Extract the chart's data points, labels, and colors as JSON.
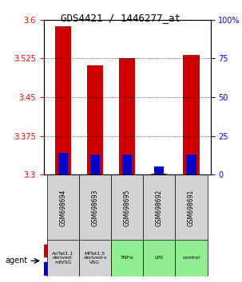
{
  "title": "GDS4421 / 1446277_at",
  "samples": [
    "GSM698694",
    "GSM698693",
    "GSM698695",
    "GSM698692",
    "GSM698691"
  ],
  "agents": [
    "AnTat1.1\nderived-\nmfVSG",
    "MiTat1.5\nderived-s\nVSG",
    "TNFα",
    "LPS",
    "control"
  ],
  "agent_colors": [
    "#d3d3d3",
    "#d3d3d3",
    "#90ee90",
    "#90ee90",
    "#90ee90"
  ],
  "red_values": [
    3.588,
    3.512,
    3.525,
    3.302,
    3.532
  ],
  "blue_values_pct": [
    14,
    13,
    13,
    5,
    13
  ],
  "ylim": [
    3.3,
    3.6
  ],
  "yticks_left": [
    3.3,
    3.375,
    3.45,
    3.525,
    3.6
  ],
  "yticks_right": [
    0,
    25,
    50,
    75,
    100
  ],
  "bar_color": "#cc0000",
  "blue_color": "#0000cc",
  "bar_width": 0.5,
  "background_color": "#ffffff",
  "plot_bg": "#ffffff"
}
